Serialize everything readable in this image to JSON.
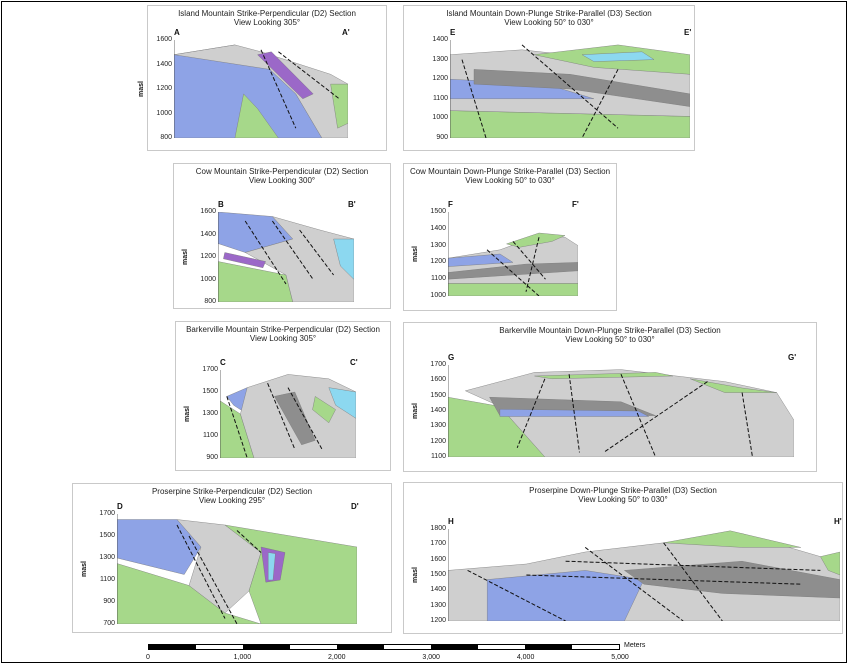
{
  "colors": {
    "blue": "#8ea3e6",
    "green": "#a6d88a",
    "gray": "#cfcfcf",
    "darkgray": "#8e8e8e",
    "purple": "#9b68c8",
    "cyan": "#8cd8f0",
    "fault": "#111111",
    "redfault": "#d23b3b"
  },
  "panels": [
    {
      "title1": "Island Mountain Strike-Perpendicular (D2) Section",
      "title2": "View Looking 305°",
      "left": "A",
      "right": "A'",
      "ylabel": "masl",
      "ticks": [
        "1600",
        "1400",
        "1200",
        "1000",
        "800"
      ]
    },
    {
      "title1": "Island Mountain Down-Plunge Strike-Parallel (D3) Section",
      "title2": "View Looking 50° to 030°",
      "left": "E",
      "right": "E'",
      "ylabel": "",
      "ticks": [
        "1400",
        "1300",
        "1200",
        "1100",
        "1000",
        "900"
      ]
    },
    {
      "title1": "Cow Mountain Strike-Perpendicular (D2) Section",
      "title2": "View Looking 300°",
      "left": "B",
      "right": "B'",
      "ylabel": "masl",
      "ticks": [
        "1600",
        "1400",
        "1200",
        "1000",
        "800"
      ]
    },
    {
      "title1": "Cow Mountain Down-Plunge Strike-Parallel (D3) Section",
      "title2": "View Looking 50° to 030°",
      "left": "F",
      "right": "F'",
      "ylabel": "masl",
      "ticks": [
        "1500",
        "1400",
        "1300",
        "1200",
        "1100",
        "1000"
      ]
    },
    {
      "title1": "Barkerville Mountain Strike-Perpendicular (D2) Section",
      "title2": "View Looking 305°",
      "left": "C",
      "right": "C'",
      "ylabel": "masl",
      "ticks": [
        "1700",
        "1500",
        "1300",
        "1100",
        "900"
      ]
    },
    {
      "title1": "Barkerville Mountain Down-Plunge Strike-Parallel (D3) Section",
      "title2": "View Looking 50° to 030°",
      "left": "G",
      "right": "G'",
      "ylabel": "masl",
      "ticks": [
        "1700",
        "1600",
        "1500",
        "1400",
        "1300",
        "1200",
        "1100"
      ]
    },
    {
      "title1": "Proserpine Strike-Perpendicular (D2) Section",
      "title2": "View Looking 295°",
      "left": "D",
      "right": "D'",
      "ylabel": "masl",
      "ticks": [
        "1700",
        "1500",
        "1300",
        "1100",
        "900",
        "700"
      ]
    },
    {
      "title1": "Proserpine Down-Plunge Strike-Parallel (D3) Section",
      "title2": "View Looking 50° to 030°",
      "left": "H",
      "right": "H'",
      "ylabel": "masl",
      "ticks": [
        "1800",
        "1700",
        "1600",
        "1500",
        "1400",
        "1300",
        "1200"
      ]
    }
  ],
  "scale": {
    "unit": "Meters",
    "ticks": [
      "0",
      "1,000",
      "2,000",
      "3,000",
      "4,000",
      "5,000"
    ]
  }
}
